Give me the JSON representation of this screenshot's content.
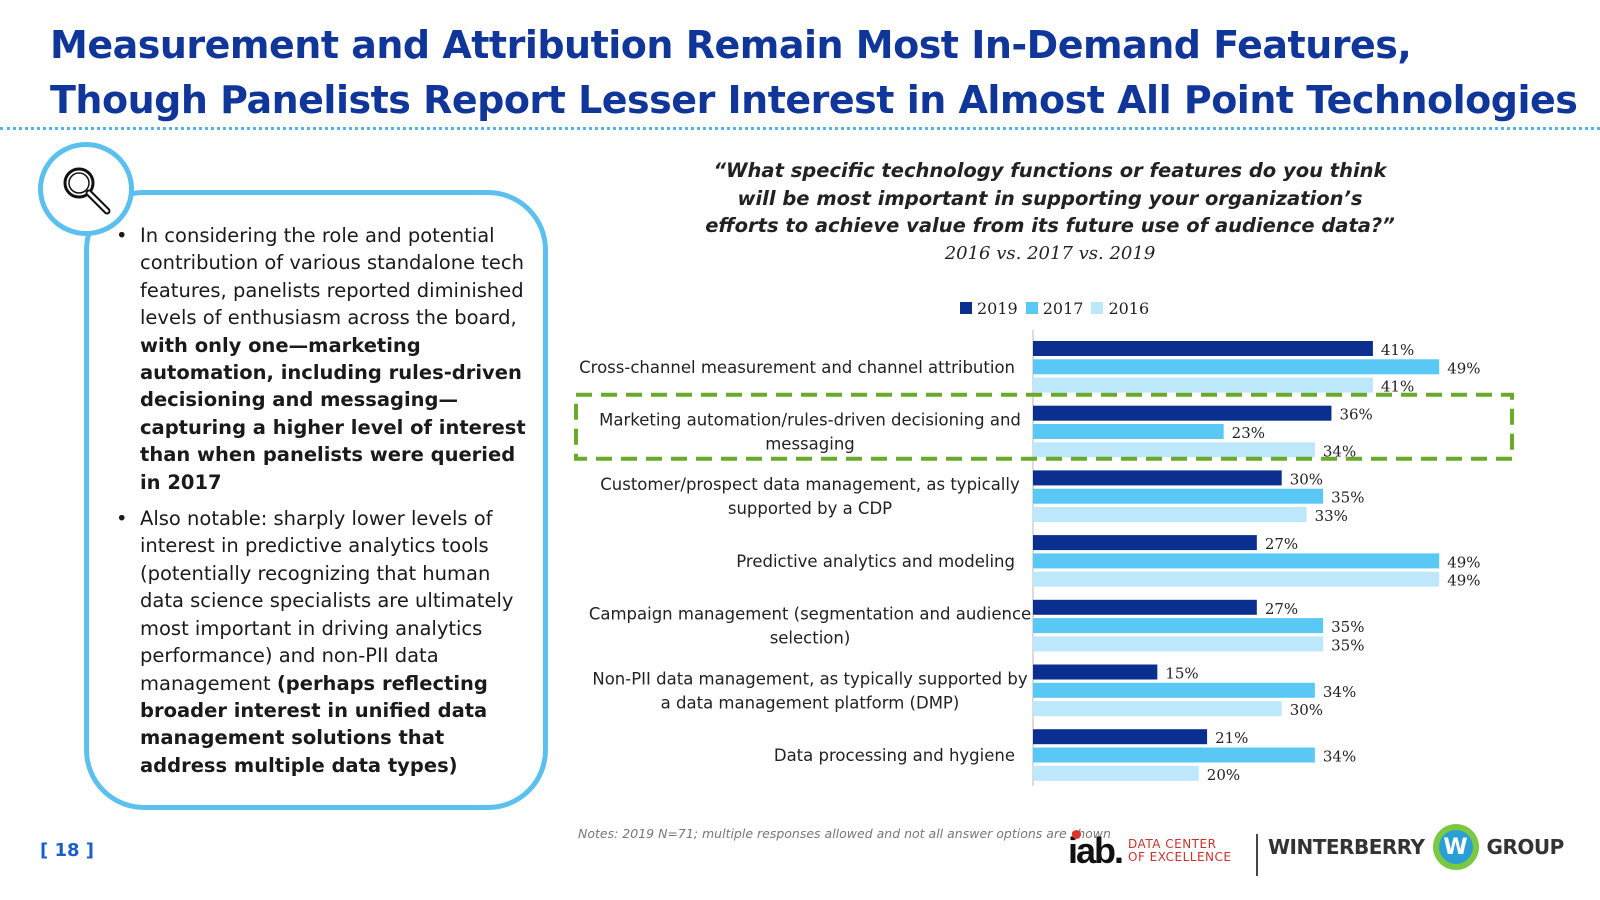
{
  "header": {
    "title_line1": "Measurement and Attribution Remain Most In-Demand Features,",
    "title_line2": "Though Panelists Report Lesser Interest in Almost All Point Technologies"
  },
  "panel": {
    "icon": "magnifier-icon",
    "bullet1_a": "In considering the role and potential contribution of various standalone tech features, panelists reported diminished levels of enthusiasm across the board,",
    "bullet1_b": "with only one—marketing automation, including rules-driven decisioning and messaging—capturing a higher level of interest than when panelists were queried in 2017",
    "bullet2_a": "Also notable: sharply lower levels of interest in predictive analytics tools (potentially recognizing that human data science specialists are ultimately most important in driving analytics performance) and non-PII data management",
    "bullet2_b": "(perhaps reflecting broader interest in unified data management solutions that address multiple data types)"
  },
  "question": "“What specific technology functions or features do you think will be most important in supporting your organization’s efforts to achieve value from its future use of audience data?”",
  "subtitle": "2016 vs. 2017 vs. 2019",
  "chart_data": {
    "type": "bar",
    "orientation": "horizontal",
    "categories": [
      "Cross-channel measurement and channel attribution",
      "Marketing automation/rules-driven decisioning and messaging",
      "Customer/prospect data management, as typically supported by a CDP",
      "Predictive analytics and modeling",
      "Campaign management (segmentation and audience selection)",
      "Non-PII data management, as typically supported by a data management platform (DMP)",
      "Data processing and hygiene"
    ],
    "series": [
      {
        "name": "2019",
        "color": "#0b2f8e",
        "values": [
          41,
          36,
          30,
          27,
          27,
          15,
          21
        ]
      },
      {
        "name": "2017",
        "color": "#5ac8f5",
        "values": [
          49,
          23,
          35,
          49,
          35,
          34,
          34
        ]
      },
      {
        "name": "2016",
        "color": "#bde8fb",
        "values": [
          41,
          34,
          33,
          49,
          35,
          30,
          20
        ]
      }
    ],
    "value_suffix": "%",
    "highlight_index": 1,
    "highlight_color": "#6aaa2b",
    "legend_position": "top",
    "xlim": [
      0,
      50
    ],
    "grid": false
  },
  "notes": "Notes: 2019 N=71; multiple responses allowed and not all answer options are shown",
  "page_number": "[ 18 ]",
  "footer": {
    "iab_word": "iab.",
    "iab_sub1": "DATA CENTER",
    "iab_sub2": "OF EXCELLENCE",
    "wg_left": "WINTERBERRY",
    "wg_mark": "W",
    "wg_right": "GROUP"
  }
}
